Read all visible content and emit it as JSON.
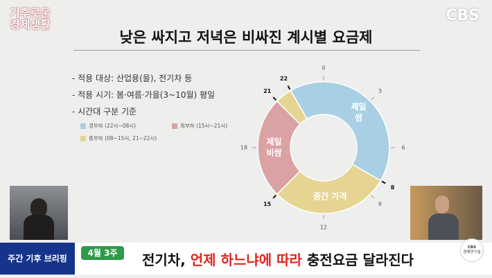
{
  "header": {
    "logo": [
      "기후로운",
      "경제생활"
    ],
    "broadcaster": "CBS",
    "title": "낮은 싸지고 저녁은 비싸진 계시별 요금제"
  },
  "bullets": [
    "- 적용 대상: 산업용(을), 전기차 등",
    "- 적용 시기: 봄·여름·가을(3~10월) 평일",
    "- 시간대 구분 기준"
  ],
  "chart_data": {
    "type": "clock-donut",
    "xlim": [
      0,
      24
    ],
    "clockticks": [
      0,
      3,
      6,
      8,
      9,
      12,
      15,
      18,
      21,
      22
    ],
    "segments": [
      {
        "name": "경부하 (22시~08시)",
        "start": 22,
        "end": 8,
        "color": "#a8cfe4",
        "label": [
          "제일",
          "쌈"
        ]
      },
      {
        "name": "중부하 (08~15시, 21~22시)",
        "start": 8,
        "end": 15,
        "color": "#e6d592",
        "label": [
          "중간 가격"
        ]
      },
      {
        "name": "최부하 (15시~21시)",
        "start": 15,
        "end": 21,
        "color": "#dba2a4",
        "label": [
          "제일",
          "비쌈"
        ]
      },
      {
        "start": 21,
        "end": 22,
        "color": "#e6d592"
      }
    ],
    "legend": [
      0,
      2,
      1
    ]
  },
  "lower_third": {
    "program": "주간 기후 브리핑",
    "week": "4월 3주",
    "headline": [
      "전기차,",
      "언제 하느냐에 따라",
      "충전요금 달라진다"
    ],
    "corner_logo": [
      "CBS",
      "경제연구실"
    ]
  }
}
